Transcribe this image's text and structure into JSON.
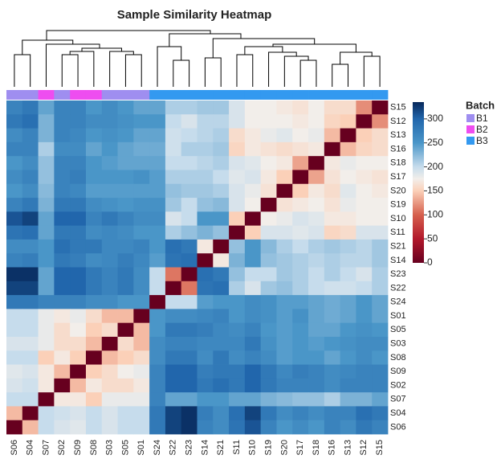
{
  "chart_data": {
    "type": "heatmap",
    "title": "Sample Similarity Heatmap",
    "columns": [
      "S06",
      "S04",
      "S07",
      "S02",
      "S09",
      "S08",
      "S03",
      "S05",
      "S01",
      "S24",
      "S22",
      "S23",
      "S14",
      "S21",
      "S11",
      "S10",
      "S19",
      "S20",
      "S17",
      "S18",
      "S16",
      "S13",
      "S12",
      "S15"
    ],
    "rows": [
      "S15",
      "S12",
      "S13",
      "S16",
      "S18",
      "S17",
      "S20",
      "S19",
      "S10",
      "S11",
      "S21",
      "S14",
      "S23",
      "S22",
      "S24",
      "S01",
      "S05",
      "S03",
      "S08",
      "S09",
      "S02",
      "S07",
      "S04",
      "S06"
    ],
    "values": [
      [
        270,
        280,
        240,
        270,
        270,
        250,
        260,
        250,
        240,
        240,
        210,
        210,
        215,
        215,
        190,
        175,
        175,
        170,
        165,
        175,
        160,
        160,
        120,
        0
      ],
      [
        280,
        290,
        230,
        270,
        270,
        260,
        260,
        255,
        250,
        250,
        200,
        190,
        205,
        205,
        190,
        175,
        175,
        175,
        170,
        175,
        155,
        150,
        0,
        120
      ],
      [
        260,
        270,
        230,
        270,
        265,
        250,
        255,
        250,
        240,
        240,
        195,
        200,
        205,
        210,
        160,
        170,
        180,
        185,
        175,
        180,
        140,
        0,
        150,
        160
      ],
      [
        270,
        270,
        210,
        260,
        260,
        240,
        250,
        240,
        235,
        235,
        195,
        210,
        210,
        215,
        155,
        170,
        165,
        160,
        165,
        170,
        0,
        140,
        155,
        160
      ],
      [
        250,
        260,
        220,
        270,
        270,
        250,
        245,
        240,
        240,
        240,
        200,
        200,
        205,
        210,
        190,
        185,
        175,
        170,
        130,
        0,
        170,
        180,
        175,
        175
      ],
      [
        260,
        270,
        220,
        270,
        275,
        250,
        250,
        250,
        255,
        245,
        210,
        210,
        210,
        200,
        185,
        190,
        170,
        150,
        0,
        130,
        165,
        175,
        170,
        165
      ],
      [
        250,
        260,
        225,
        270,
        265,
        245,
        245,
        245,
        245,
        245,
        220,
        215,
        215,
        210,
        190,
        180,
        165,
        0,
        150,
        170,
        160,
        185,
        175,
        170
      ],
      [
        270,
        280,
        230,
        280,
        280,
        260,
        255,
        250,
        255,
        255,
        215,
        200,
        220,
        225,
        190,
        175,
        0,
        165,
        170,
        175,
        165,
        180,
        175,
        175
      ],
      [
        310,
        320,
        240,
        300,
        300,
        270,
        280,
        270,
        260,
        260,
        190,
        200,
        250,
        250,
        150,
        0,
        175,
        180,
        190,
        185,
        170,
        170,
        175,
        175
      ],
      [
        285,
        290,
        240,
        280,
        280,
        260,
        265,
        260,
        250,
        250,
        210,
        220,
        230,
        220,
        0,
        150,
        190,
        190,
        185,
        190,
        155,
        160,
        190,
        190
      ],
      [
        260,
        260,
        250,
        290,
        280,
        280,
        265,
        265,
        270,
        250,
        290,
        280,
        170,
        0,
        220,
        250,
        225,
        210,
        200,
        210,
        215,
        210,
        205,
        215
      ],
      [
        270,
        275,
        250,
        280,
        275,
        260,
        265,
        275,
        265,
        245,
        285,
        290,
        0,
        170,
        230,
        250,
        220,
        215,
        210,
        205,
        210,
        205,
        205,
        215
      ],
      [
        330,
        330,
        240,
        300,
        300,
        280,
        270,
        280,
        260,
        200,
        110,
        0,
        290,
        280,
        220,
        200,
        200,
        215,
        210,
        200,
        210,
        200,
        190,
        210
      ],
      [
        320,
        320,
        240,
        300,
        300,
        280,
        270,
        280,
        260,
        200,
        0,
        110,
        285,
        290,
        210,
        190,
        215,
        220,
        210,
        200,
        195,
        195,
        200,
        210
      ],
      [
        280,
        280,
        270,
        270,
        270,
        260,
        260,
        250,
        250,
        0,
        200,
        200,
        245,
        250,
        250,
        260,
        255,
        245,
        245,
        240,
        235,
        240,
        250,
        240
      ],
      [
        200,
        200,
        180,
        170,
        180,
        160,
        140,
        140,
        0,
        250,
        260,
        260,
        265,
        270,
        250,
        260,
        255,
        245,
        255,
        240,
        235,
        240,
        250,
        240
      ],
      [
        200,
        200,
        180,
        160,
        175,
        150,
        160,
        0,
        140,
        250,
        280,
        280,
        275,
        265,
        260,
        270,
        250,
        245,
        250,
        240,
        240,
        250,
        255,
        250
      ],
      [
        190,
        190,
        180,
        160,
        160,
        140,
        0,
        160,
        140,
        260,
        270,
        270,
        265,
        265,
        265,
        280,
        255,
        245,
        250,
        245,
        250,
        255,
        260,
        260
      ],
      [
        200,
        200,
        150,
        170,
        150,
        0,
        140,
        150,
        160,
        260,
        280,
        280,
        260,
        280,
        260,
        270,
        260,
        245,
        250,
        250,
        240,
        250,
        260,
        250
      ],
      [
        185,
        190,
        170,
        140,
        0,
        150,
        160,
        175,
        180,
        270,
        300,
        300,
        275,
        280,
        280,
        300,
        280,
        265,
        275,
        270,
        260,
        265,
        270,
        270
      ],
      [
        190,
        195,
        170,
        0,
        140,
        170,
        160,
        160,
        170,
        270,
        300,
        300,
        280,
        290,
        280,
        300,
        280,
        270,
        270,
        270,
        260,
        270,
        270,
        270
      ],
      [
        200,
        200,
        0,
        170,
        170,
        150,
        180,
        180,
        180,
        270,
        240,
        240,
        250,
        250,
        240,
        240,
        230,
        225,
        220,
        220,
        210,
        230,
        230,
        240
      ],
      [
        140,
        0,
        200,
        195,
        190,
        200,
        190,
        200,
        200,
        280,
        320,
        330,
        275,
        260,
        290,
        320,
        280,
        260,
        270,
        260,
        270,
        270,
        290,
        280
      ],
      [
        0,
        140,
        200,
        190,
        185,
        200,
        190,
        200,
        200,
        280,
        320,
        330,
        270,
        260,
        285,
        310,
        270,
        250,
        260,
        250,
        270,
        260,
        280,
        270
      ]
    ],
    "colorscale": [
      [
        0,
        "#67001f"
      ],
      [
        50,
        "#b2182b"
      ],
      [
        100,
        "#d6604d"
      ],
      [
        150,
        "#fbd0b8"
      ],
      [
        175,
        "#f2eeea"
      ],
      [
        200,
        "#c6dcec"
      ],
      [
        250,
        "#4a96c8"
      ],
      [
        300,
        "#2166ac"
      ],
      [
        335,
        "#07285a"
      ]
    ],
    "zlim": [
      0,
      335
    ],
    "zticks": [
      0,
      50,
      100,
      150,
      200,
      250,
      300
    ],
    "legend_title": "Batch",
    "batches": [
      {
        "name": "B1",
        "color": "#9f8ef0"
      },
      {
        "name": "B2",
        "color": "#ee4df0"
      },
      {
        "name": "B3",
        "color": "#3399f0"
      }
    ],
    "column_batch": [
      "B1",
      "B1",
      "B2",
      "B1",
      "B2",
      "B2",
      "B1",
      "B1",
      "B1",
      "B3",
      "B3",
      "B3",
      "B3",
      "B3",
      "B3",
      "B3",
      "B3",
      "B3",
      "B3",
      "B3",
      "B3",
      "B3",
      "B3",
      "B3"
    ]
  }
}
